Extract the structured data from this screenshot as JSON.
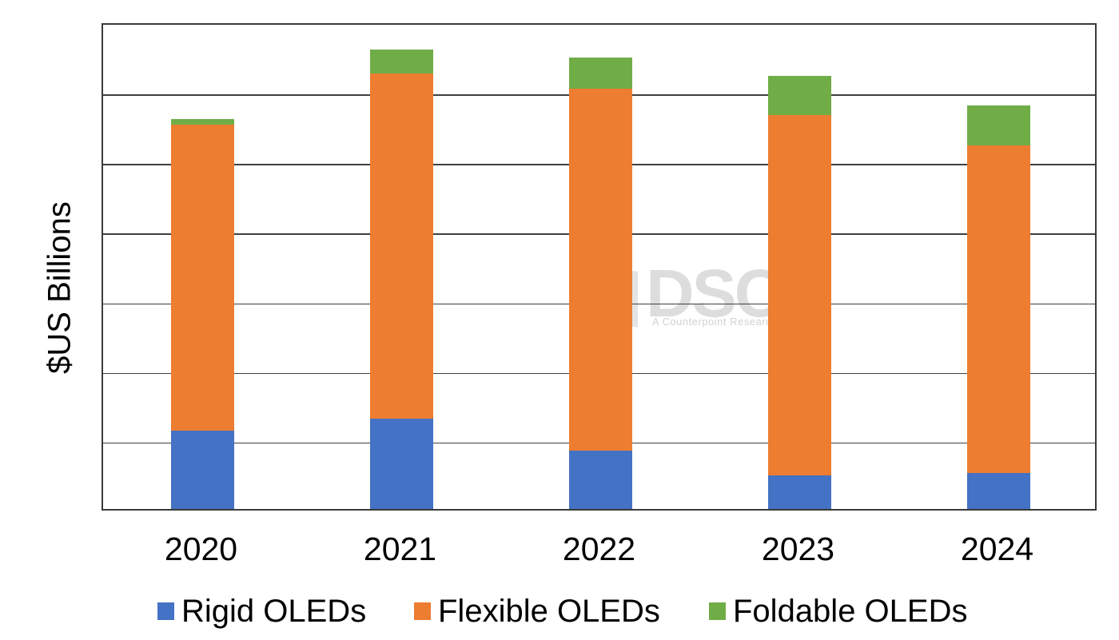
{
  "watermark": {
    "brand": "DSCC",
    "tagline": "A Counterpoint Research Company"
  },
  "chart_data": {
    "type": "bar",
    "stacked": true,
    "title": "",
    "xlabel": "",
    "ylabel": "$US Billions",
    "categories": [
      "2020",
      "2021",
      "2022",
      "2023",
      "2024"
    ],
    "series": [
      {
        "name": "Rigid OLEDs",
        "color": "#4472C4",
        "values": [
          5.6,
          6.5,
          4.2,
          2.4,
          2.6
        ]
      },
      {
        "name": "Flexible OLEDs",
        "color": "#ED7D31",
        "values": [
          22.0,
          24.8,
          26.0,
          25.9,
          23.5
        ]
      },
      {
        "name": "Foldable OLEDs",
        "color": "#70AD47",
        "values": [
          0.4,
          1.7,
          2.2,
          2.8,
          2.9
        ]
      }
    ],
    "totals": [
      28.0,
      33.0,
      32.4,
      31.1,
      29.0
    ],
    "ylim": [
      0,
      35
    ],
    "gridline_step": 5,
    "y_tick_labels_visible": false,
    "grid": true,
    "gridline_color": "#3f3f3f",
    "plot_border_color": "#3a3a3a",
    "legend_position": "bottom"
  }
}
